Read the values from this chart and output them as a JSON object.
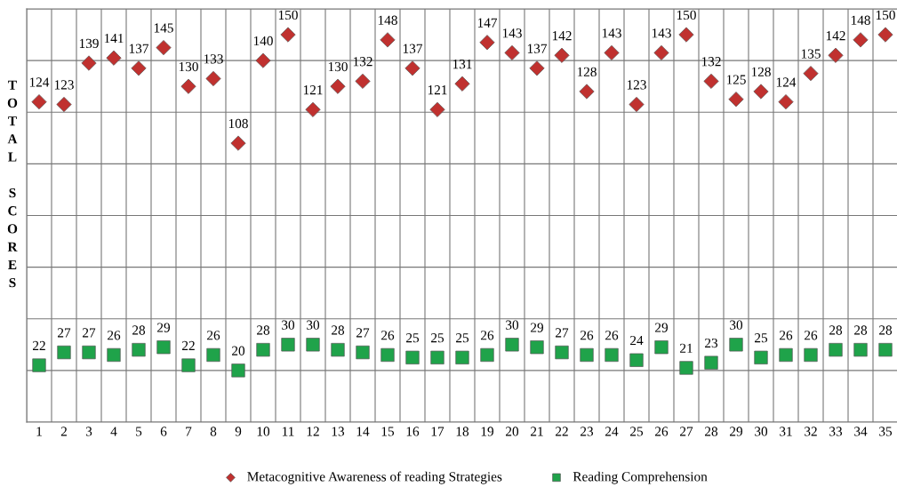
{
  "chart_data": {
    "type": "scatter",
    "ylabel": "TOTAL SCORES",
    "categories": [
      "1",
      "2",
      "3",
      "4",
      "5",
      "6",
      "7",
      "8",
      "9",
      "10",
      "11",
      "12",
      "13",
      "14",
      "15",
      "16",
      "17",
      "18",
      "19",
      "20",
      "21",
      "22",
      "23",
      "24",
      "25",
      "26",
      "27",
      "28",
      "29",
      "30",
      "31",
      "32",
      "33",
      "34",
      "35"
    ],
    "series": [
      {
        "name": "Metacognitive Awareness of reading Strategies",
        "color": "#c0312f",
        "marker": "diamond",
        "values": [
          124,
          123,
          139,
          141,
          137,
          145,
          130,
          133,
          108,
          140,
          150,
          121,
          130,
          132,
          148,
          137,
          121,
          131,
          147,
          143,
          137,
          142,
          128,
          143,
          123,
          143,
          150,
          132,
          125,
          128,
          124,
          135,
          142,
          148,
          150
        ]
      },
      {
        "name": "Reading Comprehension",
        "color": "#1fa34a",
        "marker": "square",
        "values": [
          22,
          27,
          27,
          26,
          28,
          29,
          22,
          26,
          20,
          28,
          30,
          30,
          28,
          27,
          26,
          25,
          25,
          25,
          26,
          30,
          29,
          27,
          26,
          26,
          24,
          29,
          21,
          23,
          30,
          25,
          26,
          26,
          28,
          28,
          28
        ]
      }
    ],
    "ylim": [
      0,
      160
    ],
    "yticks": [
      {
        "value": 0,
        "label": null
      },
      {
        "value": 20,
        "label": null
      },
      {
        "value": 40,
        "label": null
      },
      {
        "value": 60,
        "label": null
      },
      {
        "value": 80,
        "label": null
      },
      {
        "value": 100,
        "label": null
      },
      {
        "value": 120,
        "label": null
      },
      {
        "value": 140,
        "label": null
      },
      {
        "value": 160,
        "label": null
      }
    ],
    "tick_labels": "x",
    "grid": true,
    "legend": "bottom",
    "data_labels": true
  }
}
